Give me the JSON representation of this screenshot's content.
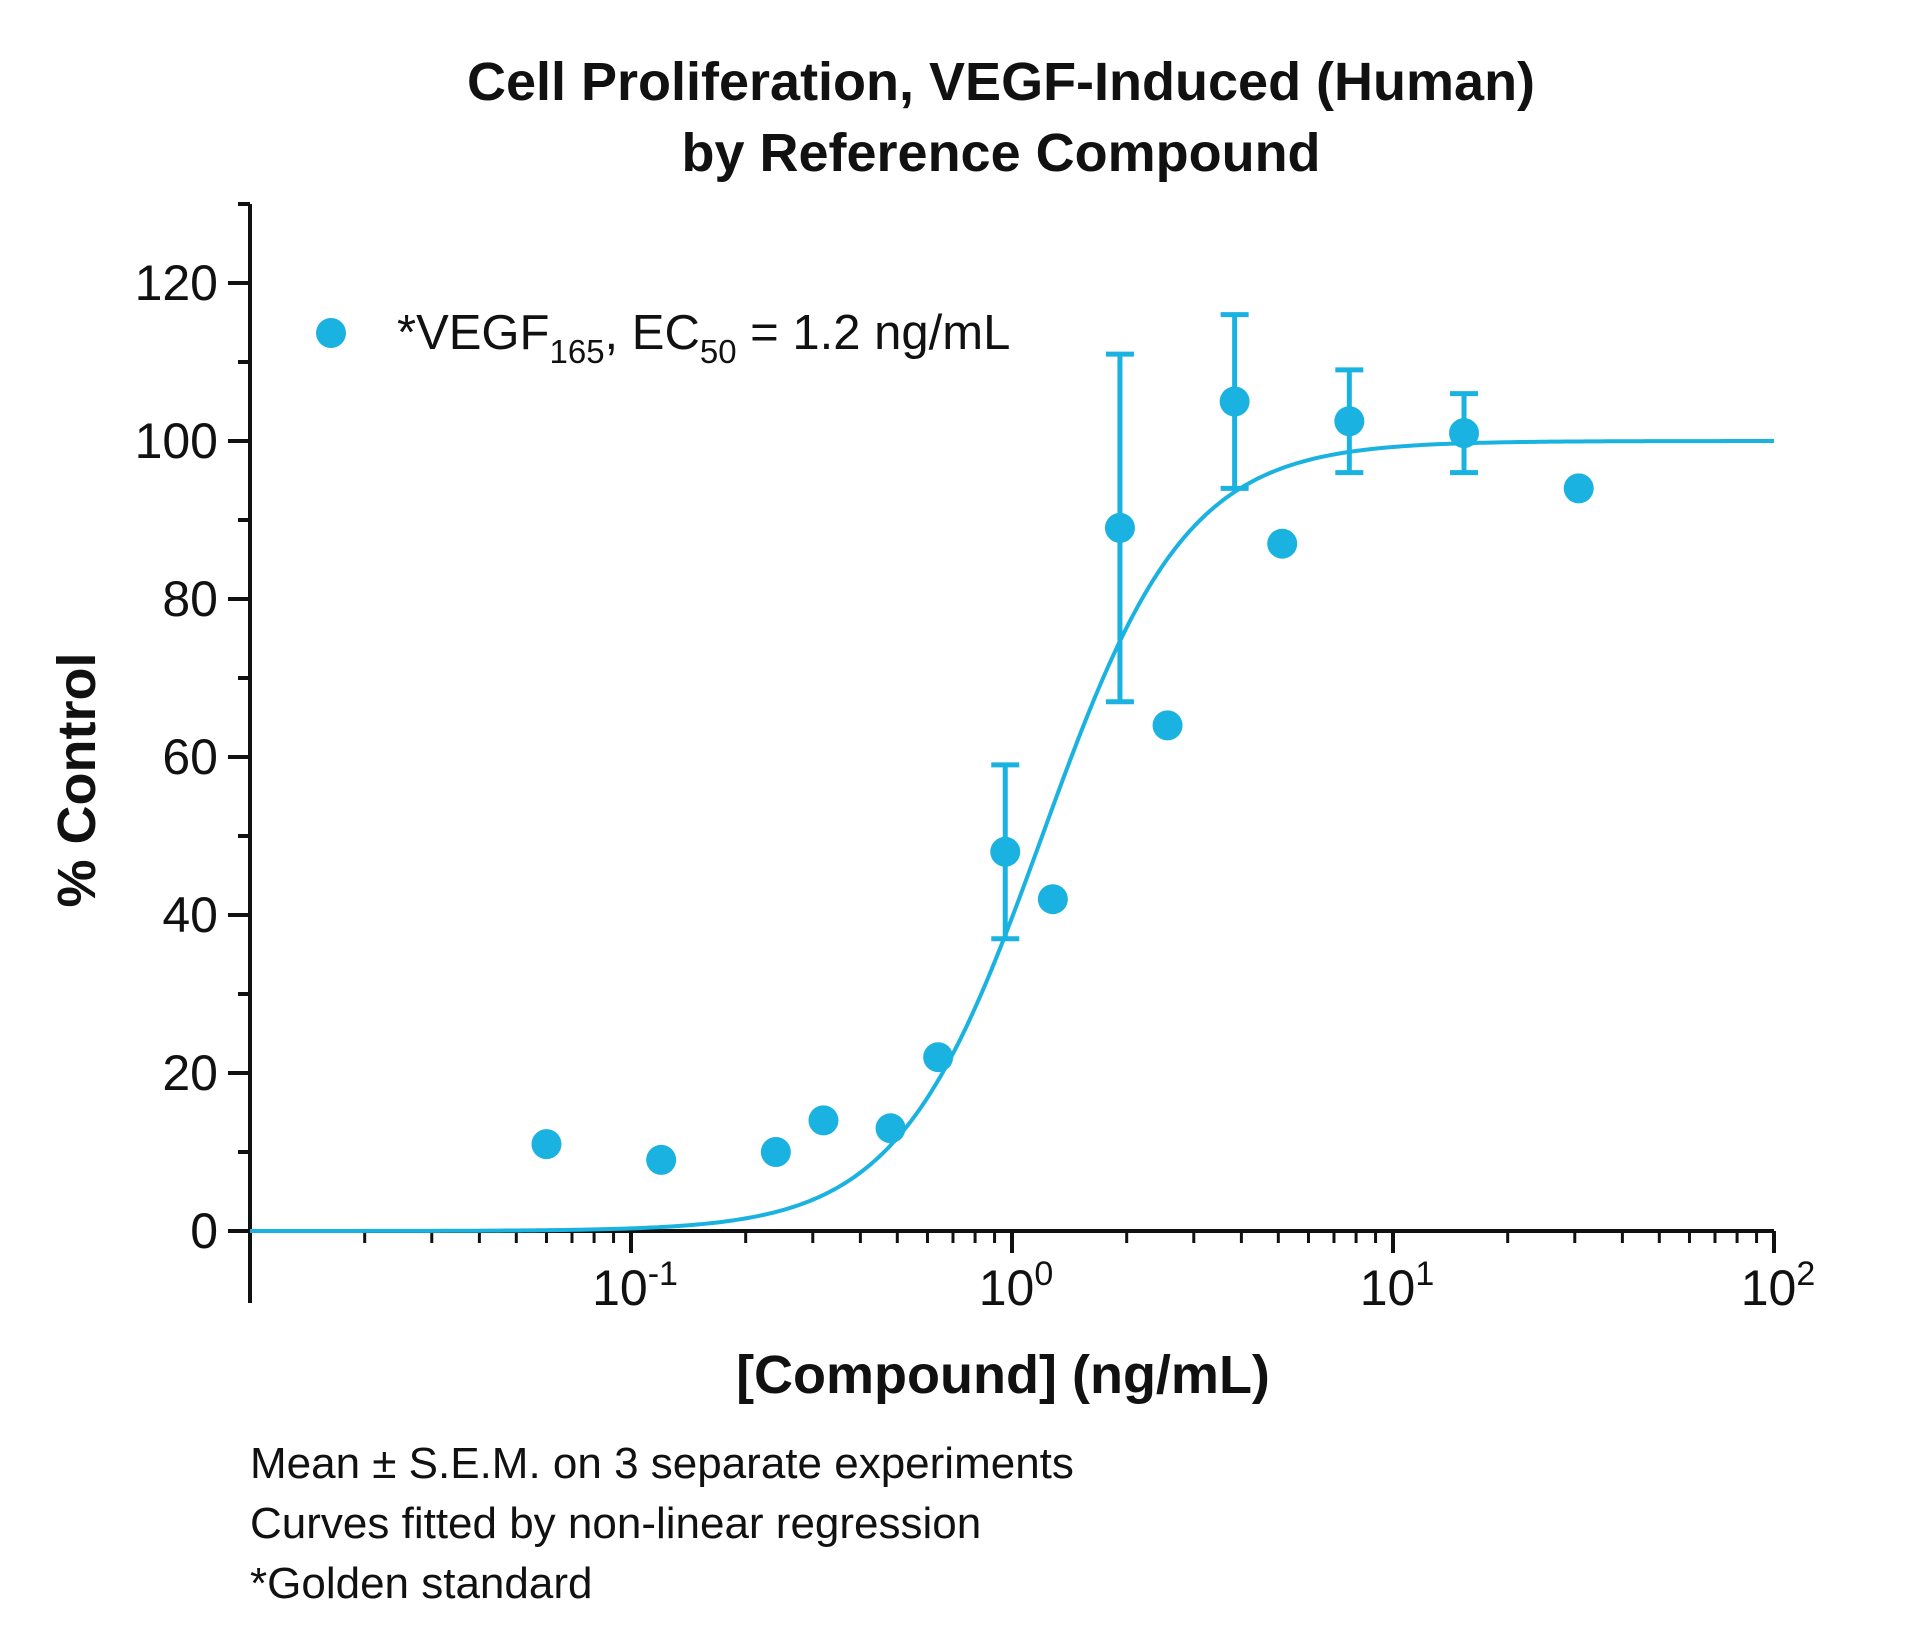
{
  "chart_data": {
    "type": "scatter",
    "title": [
      "Cell Proliferation, VEGF-Induced (Human)",
      "by Reference Compound"
    ],
    "xlabel": "[Compound] (ng/mL)",
    "ylabel": "% Control",
    "x_scale": "log",
    "xlim": [
      0.01,
      100
    ],
    "ylim": [
      0,
      130
    ],
    "x_tick_labels": [
      {
        "value": 0.1,
        "base": "10",
        "exp": "-1"
      },
      {
        "value": 1,
        "base": "10",
        "exp": "0"
      },
      {
        "value": 10,
        "base": "10",
        "exp": "1"
      },
      {
        "value": 100,
        "base": "10",
        "exp": "2"
      }
    ],
    "y_ticks": [
      0,
      20,
      40,
      60,
      80,
      100,
      120
    ],
    "grid": false,
    "color": "#1ab2e0",
    "legend_position": "top-left",
    "legend": {
      "prefix": "*VEGF",
      "sub1": "165",
      "middle": ", EC",
      "sub2": "50",
      "suffix": " = 1.2 ng/mL"
    },
    "series": [
      {
        "name": "*VEGF165",
        "points": [
          {
            "x": 0.06,
            "y": 11
          },
          {
            "x": 0.12,
            "y": 9
          },
          {
            "x": 0.24,
            "y": 10
          },
          {
            "x": 0.32,
            "y": 14
          },
          {
            "x": 0.48,
            "y": 13
          },
          {
            "x": 0.64,
            "y": 22
          },
          {
            "x": 0.96,
            "y": 48,
            "err_low": 37,
            "err_high": 59
          },
          {
            "x": 1.28,
            "y": 42
          },
          {
            "x": 1.92,
            "y": 89,
            "err_low": 67,
            "err_high": 111
          },
          {
            "x": 2.56,
            "y": 64
          },
          {
            "x": 3.84,
            "y": 105,
            "err_low": 94,
            "err_high": 116
          },
          {
            "x": 5.12,
            "y": 87
          },
          {
            "x": 7.68,
            "y": 102.5,
            "err_low": 96,
            "err_high": 109
          },
          {
            "x": 15.36,
            "y": 101,
            "err_low": 96,
            "err_high": 106
          },
          {
            "x": 30.72,
            "y": 94
          }
        ],
        "fit": {
          "model": "4PL",
          "bottom": 0,
          "top": 100,
          "ec50": 1.2,
          "hill": 2.3
        }
      }
    ],
    "footnotes": [
      "Mean ± S.E.M. on 3 separate experiments",
      "Curves fitted by non-linear regression",
      "*Golden standard"
    ]
  }
}
